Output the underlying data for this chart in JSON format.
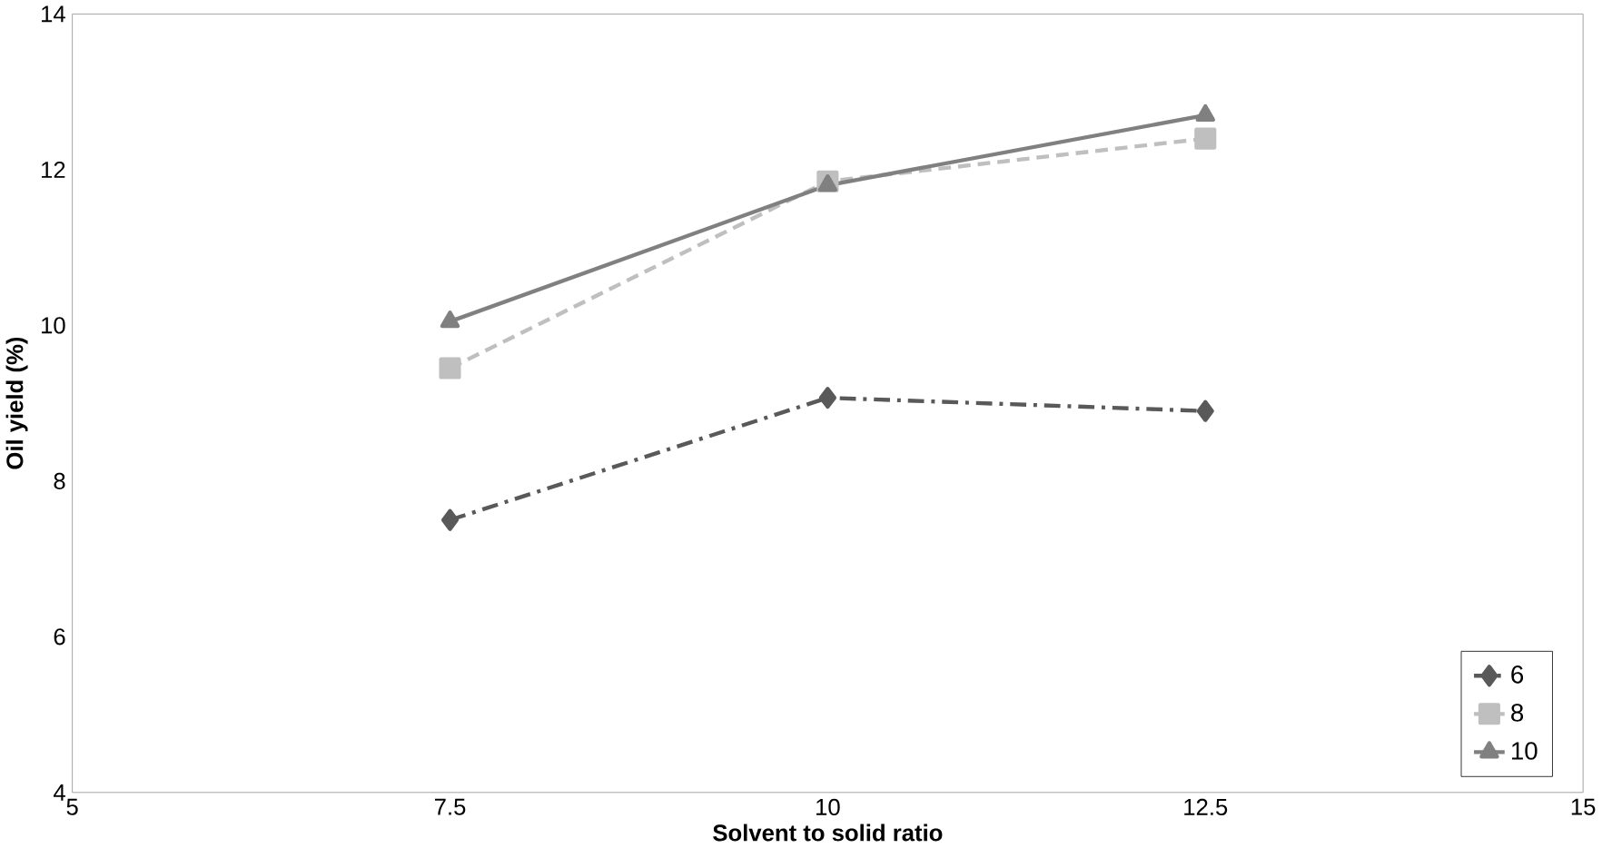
{
  "chart_data": {
    "type": "line",
    "xlabel": "Solvent to solid ratio",
    "ylabel": "Oil yield (%)",
    "x": [
      7.5,
      10,
      12.5
    ],
    "series": [
      {
        "name": "6",
        "color": "#595959",
        "values": [
          7.5,
          9.07,
          8.9
        ],
        "marker": "diamond",
        "line_style": "dashdot"
      },
      {
        "name": "8",
        "color": "#bfbfbf",
        "values": [
          9.45,
          11.85,
          12.4
        ],
        "marker": "square",
        "line_style": "dashed"
      },
      {
        "name": "10",
        "color": "#808080",
        "values": [
          10.05,
          11.8,
          12.7
        ],
        "marker": "triangle",
        "line_style": "solid"
      }
    ],
    "xlim": [
      5,
      15
    ],
    "xticks": [
      5,
      7.5,
      10,
      12.5,
      15
    ],
    "ylim": [
      4,
      14
    ],
    "yticks": [
      4,
      6,
      8,
      10,
      12,
      14
    ],
    "grid": false,
    "legend": "bottom right"
  }
}
